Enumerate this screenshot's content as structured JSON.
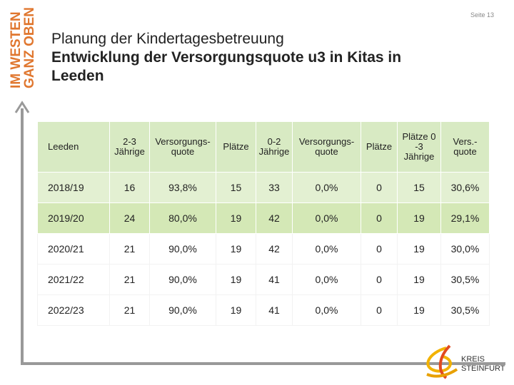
{
  "page_label": "Seite 13",
  "side_text": [
    "IM WESTEN",
    "GANZ OBEN"
  ],
  "title": [
    "Planung der Kindertagesbetreuung",
    "Entwicklung der Versorgungsquote u3 in Kitas in",
    "Leeden"
  ],
  "table": {
    "header": [
      [
        "Leeden"
      ],
      [
        "2-3",
        "Jährige"
      ],
      [
        "Versorgungs-",
        "quote"
      ],
      [
        "Plätze"
      ],
      [
        "0-2",
        "Jährige"
      ],
      [
        "Versorgungs-",
        "quote"
      ],
      [
        "Plätze"
      ],
      [
        "Plätze 0",
        "-3",
        "Jährige"
      ],
      [
        "Vers.-",
        "quote"
      ]
    ],
    "rows": [
      [
        "2018/19",
        "16",
        "93,8%",
        "15",
        "33",
        "0,0%",
        "0",
        "15",
        "30,6%"
      ],
      [
        "2019/20",
        "24",
        "80,0%",
        "19",
        "42",
        "0,0%",
        "0",
        "19",
        "29,1%"
      ],
      [
        "2020/21",
        "21",
        "90,0%",
        "19",
        "42",
        "0,0%",
        "0",
        "19",
        "30,0%"
      ],
      [
        "2021/22",
        "21",
        "90,0%",
        "19",
        "41",
        "0,0%",
        "0",
        "19",
        "30,5%"
      ],
      [
        "2022/23",
        "21",
        "90,0%",
        "19",
        "41",
        "0,0%",
        "0",
        "19",
        "30,5%"
      ]
    ]
  },
  "logo": [
    "KREIS",
    "STEINFURT"
  ]
}
